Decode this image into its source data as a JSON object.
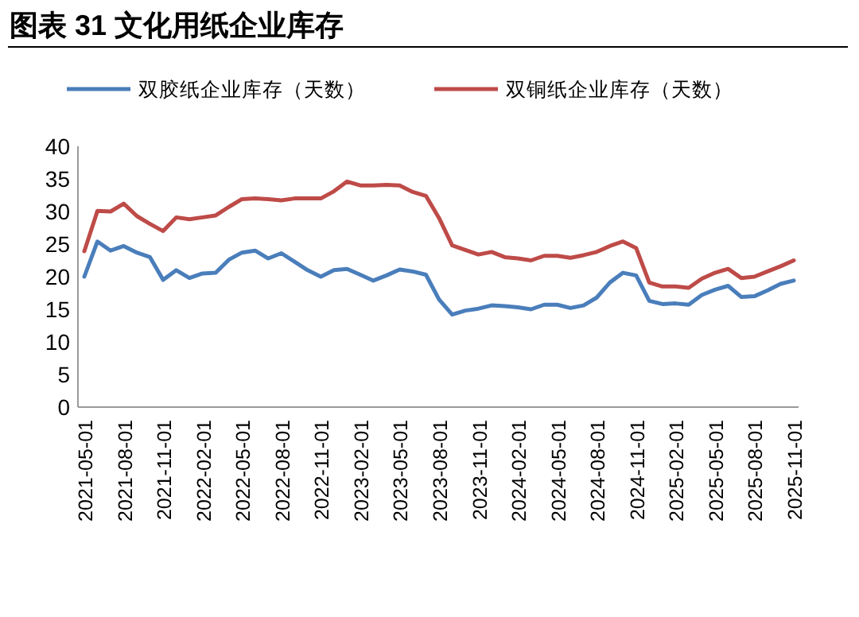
{
  "chart_data": {
    "type": "line",
    "title": "图表 31 文化用纸企业库存",
    "legend": "top",
    "grid": false,
    "line_style": "solid",
    "marker": "none",
    "categories": [
      "2021-05-01",
      null,
      null,
      "2021-08-01",
      null,
      null,
      "2021-11-01",
      null,
      null,
      "2022-02-01",
      null,
      null,
      "2022-05-01",
      null,
      null,
      "2022-08-01",
      null,
      null,
      "2022-11-01",
      null,
      null,
      "2023-02-01",
      null,
      null,
      "2023-05-01",
      null,
      null,
      "2023-08-01",
      null,
      null,
      "2023-11-01",
      null,
      null,
      "2024-02-01",
      null,
      null,
      "2024-05-01",
      null,
      null,
      "2024-08-01",
      null,
      null,
      "2024-11-01",
      null,
      null,
      "2025-02-01",
      null,
      null,
      "2025-05-01",
      null,
      null,
      "2025-08-01",
      null,
      null,
      "2025-11-01"
    ],
    "ylim": [
      0,
      40
    ],
    "yticks": [
      0,
      5,
      10,
      15,
      20,
      25,
      30,
      35,
      40
    ],
    "series": [
      {
        "name": "双胶纸企业库存（天数）",
        "color": "#4a7ebb",
        "values": [
          20,
          25.4,
          24,
          24.7,
          23.7,
          23,
          19.5,
          21,
          19.8,
          20.5,
          20.6,
          22.6,
          23.7,
          24,
          22.8,
          23.6,
          22.3,
          21,
          20,
          21,
          21.2,
          20.3,
          19.4,
          20.2,
          21.1,
          20.8,
          20.3,
          16.5,
          14.2,
          14.8,
          15.1,
          15.6,
          15.5,
          15.3,
          15,
          15.7,
          15.7,
          15.2,
          15.6,
          16.8,
          19.1,
          20.6,
          20.2,
          16.3,
          15.8,
          15.9,
          15.7,
          17.2,
          18,
          18.6,
          16.9,
          17,
          17.9,
          18.9,
          19.4
        ]
      },
      {
        "name": "双铜纸企业库存（天数）",
        "color": "#be4b48",
        "values": [
          23.9,
          30.1,
          30,
          31.2,
          29.3,
          28.1,
          27,
          29.1,
          28.8,
          29.1,
          29.4,
          30.7,
          31.9,
          32,
          31.9,
          31.7,
          32,
          32,
          32,
          33.1,
          34.6,
          34,
          34,
          34.1,
          34,
          33,
          32.4,
          29,
          24.8,
          24.1,
          23.4,
          23.8,
          23,
          22.8,
          22.5,
          23.2,
          23.2,
          22.9,
          23.3,
          23.8,
          24.7,
          25.4,
          24.4,
          19.1,
          18.5,
          18.5,
          18.3,
          19.7,
          20.6,
          21.2,
          19.8,
          20,
          20.8,
          21.6,
          22.5
        ]
      }
    ]
  }
}
